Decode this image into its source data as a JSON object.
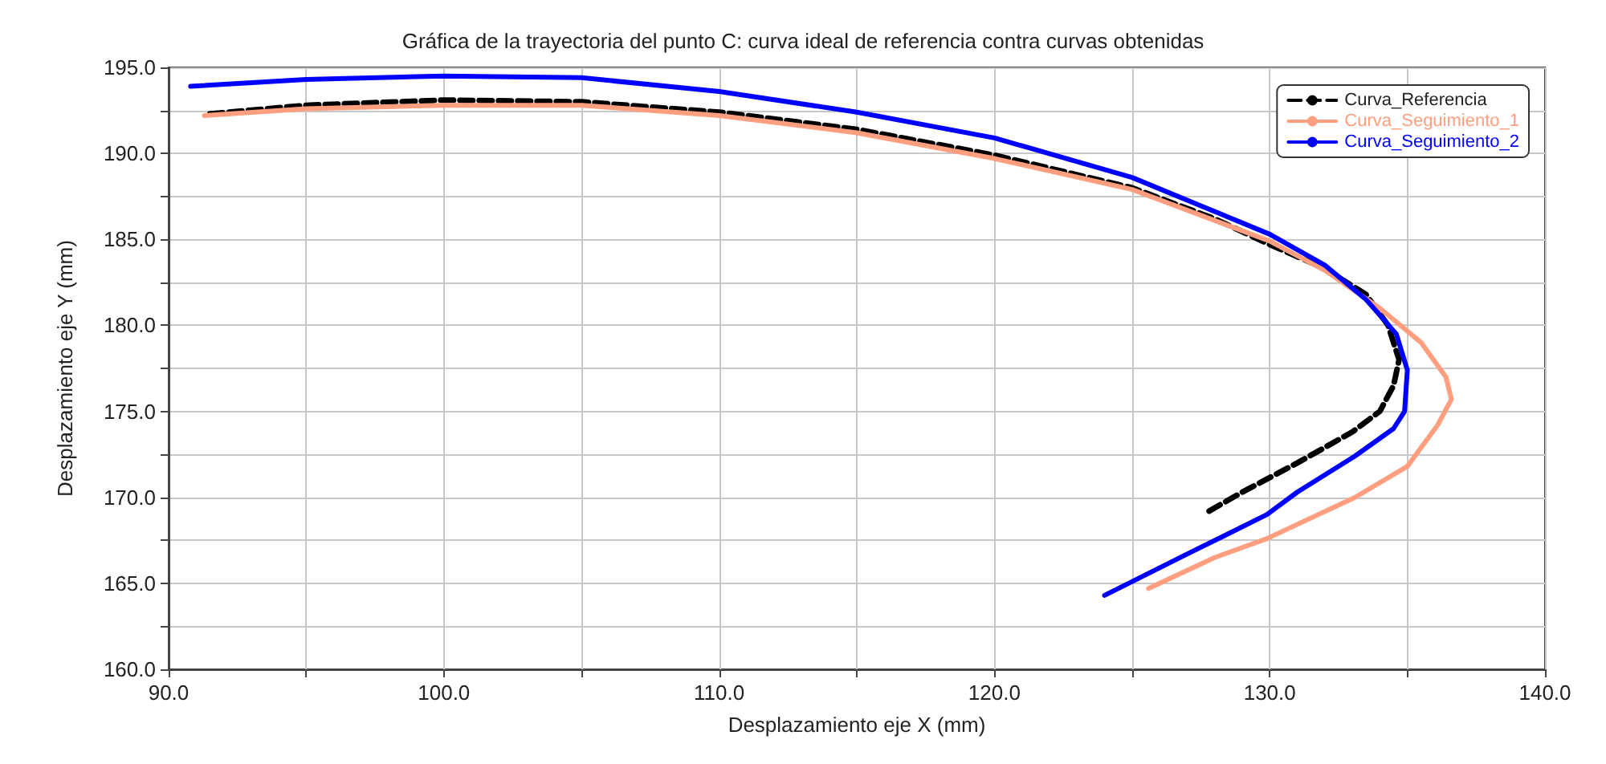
{
  "chart_data": {
    "type": "line",
    "title": "Gráfica de la trayectoria del punto C: curva ideal de referencia contra curvas obtenidas",
    "xlabel": "Desplazamiento eje X (mm)",
    "ylabel": "Desplazamiento eje Y (mm)",
    "xlim": [
      90,
      140
    ],
    "ylim": [
      160,
      195
    ],
    "xticks": [
      {
        "value": 90,
        "label": "90.0"
      },
      {
        "value": 95,
        "label": null
      },
      {
        "value": 100,
        "label": "100.0"
      },
      {
        "value": 105,
        "label": null
      },
      {
        "value": 110,
        "label": "110.0"
      },
      {
        "value": 115,
        "label": null
      },
      {
        "value": 120,
        "label": "120.0"
      },
      {
        "value": 125,
        "label": null
      },
      {
        "value": 130,
        "label": "130.0"
      },
      {
        "value": 135,
        "label": null
      },
      {
        "value": 140,
        "label": "140.0"
      }
    ],
    "yticks": [
      {
        "value": 160,
        "label": "160.0"
      },
      {
        "value": 162.5,
        "label": null
      },
      {
        "value": 165,
        "label": "165.0"
      },
      {
        "value": 167.5,
        "label": null
      },
      {
        "value": 170,
        "label": "170.0"
      },
      {
        "value": 172.5,
        "label": null
      },
      {
        "value": 175,
        "label": "175.0"
      },
      {
        "value": 177.5,
        "label": null
      },
      {
        "value": 180,
        "label": "180.0"
      },
      {
        "value": 182.5,
        "label": null
      },
      {
        "value": 185,
        "label": "185.0"
      },
      {
        "value": 187.5,
        "label": null
      },
      {
        "value": 190,
        "label": "190.0"
      },
      {
        "value": 192.5,
        "label": null
      },
      {
        "value": 195,
        "label": "195.0"
      }
    ],
    "grid": true,
    "legend": "top right",
    "marker": "none",
    "series": [
      {
        "name": "Curva_Referencia",
        "color": "#000000",
        "line_style": "dashed",
        "x": [
          91.5,
          95,
          100,
          105,
          110,
          115,
          120,
          125,
          128,
          130,
          132,
          133.5,
          134.3,
          134.7,
          134.5,
          134,
          133,
          131,
          129,
          127.8
        ],
        "values": [
          192.3,
          192.8,
          193.1,
          193.0,
          192.4,
          191.4,
          189.9,
          188.0,
          186.2,
          184.7,
          183.3,
          181.8,
          180.0,
          178.0,
          176.5,
          175.0,
          173.8,
          172.0,
          170.3,
          169.2
        ]
      },
      {
        "name": "Curva_Seguimiento_1",
        "color": "#ff9f7f",
        "line_style": "solid",
        "x": [
          91.3,
          95,
          100,
          105,
          110,
          115,
          120,
          125,
          130,
          132,
          134,
          135.5,
          136.4,
          136.6,
          136.1,
          135,
          133.1,
          129.9,
          128,
          125.6
        ],
        "values": [
          192.2,
          192.6,
          192.8,
          192.8,
          192.2,
          191.2,
          189.7,
          187.9,
          184.9,
          183.2,
          181.0,
          179.0,
          177.0,
          175.7,
          174.2,
          171.8,
          170.0,
          167.6,
          166.5,
          164.7
        ]
      },
      {
        "name": "Curva_Seguimiento_2",
        "color": "#0000ff",
        "line_style": "solid",
        "x": [
          90.8,
          95,
          100,
          105,
          110,
          115,
          120,
          125,
          130,
          132,
          133.5,
          134.6,
          135.0,
          134.9,
          134.5,
          133.1,
          131,
          129.9,
          127,
          124
        ],
        "values": [
          193.9,
          194.3,
          194.5,
          194.4,
          193.6,
          192.4,
          190.9,
          188.6,
          185.3,
          183.5,
          181.5,
          179.5,
          177.4,
          175.0,
          174.0,
          172.4,
          170.3,
          169.0,
          166.7,
          164.3
        ]
      }
    ]
  }
}
